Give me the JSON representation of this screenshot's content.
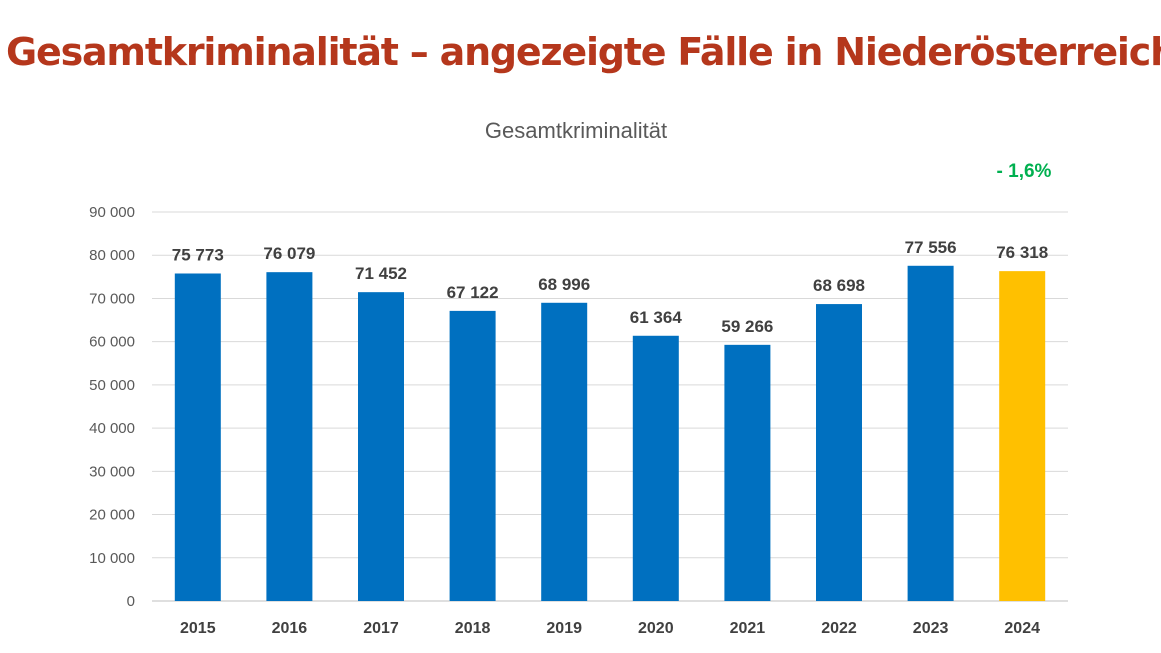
{
  "page": {
    "heading": "Gesamtkriminalität – angezeigte Fälle in Niederösterreich"
  },
  "chart_data": {
    "type": "bar",
    "title": "Gesamtkriminalität",
    "categories": [
      "2015",
      "2016",
      "2017",
      "2018",
      "2019",
      "2020",
      "2021",
      "2022",
      "2023",
      "2024"
    ],
    "values": [
      75773,
      76079,
      71452,
      67122,
      68996,
      61364,
      59266,
      68698,
      77556,
      76318
    ],
    "data_labels": [
      "75 773",
      "76 079",
      "71 452",
      "67 122",
      "68 996",
      "61 364",
      "59 266",
      "68 698",
      "77 556",
      "76 318"
    ],
    "ylim": [
      0,
      90000
    ],
    "yticks": [
      0,
      10000,
      20000,
      30000,
      40000,
      50000,
      60000,
      70000,
      80000,
      90000
    ],
    "ytick_labels": [
      "0",
      "10 000",
      "20 000",
      "30 000",
      "40 000",
      "50 000",
      "60 000",
      "70 000",
      "80 000",
      "90 000"
    ],
    "grid": true,
    "xlabel": "",
    "ylabel": "",
    "bar_colors": [
      "#0070c0",
      "#0070c0",
      "#0070c0",
      "#0070c0",
      "#0070c0",
      "#0070c0",
      "#0070c0",
      "#0070c0",
      "#0070c0",
      "#ffc000"
    ],
    "change_annotation": {
      "text": "- 1,6%",
      "color": "#00b050",
      "placement": "top-right above 2024"
    }
  },
  "colors": {
    "heading": "#b5371c",
    "gridline": "#d9d9d9",
    "axis": "#bfbfbf"
  }
}
